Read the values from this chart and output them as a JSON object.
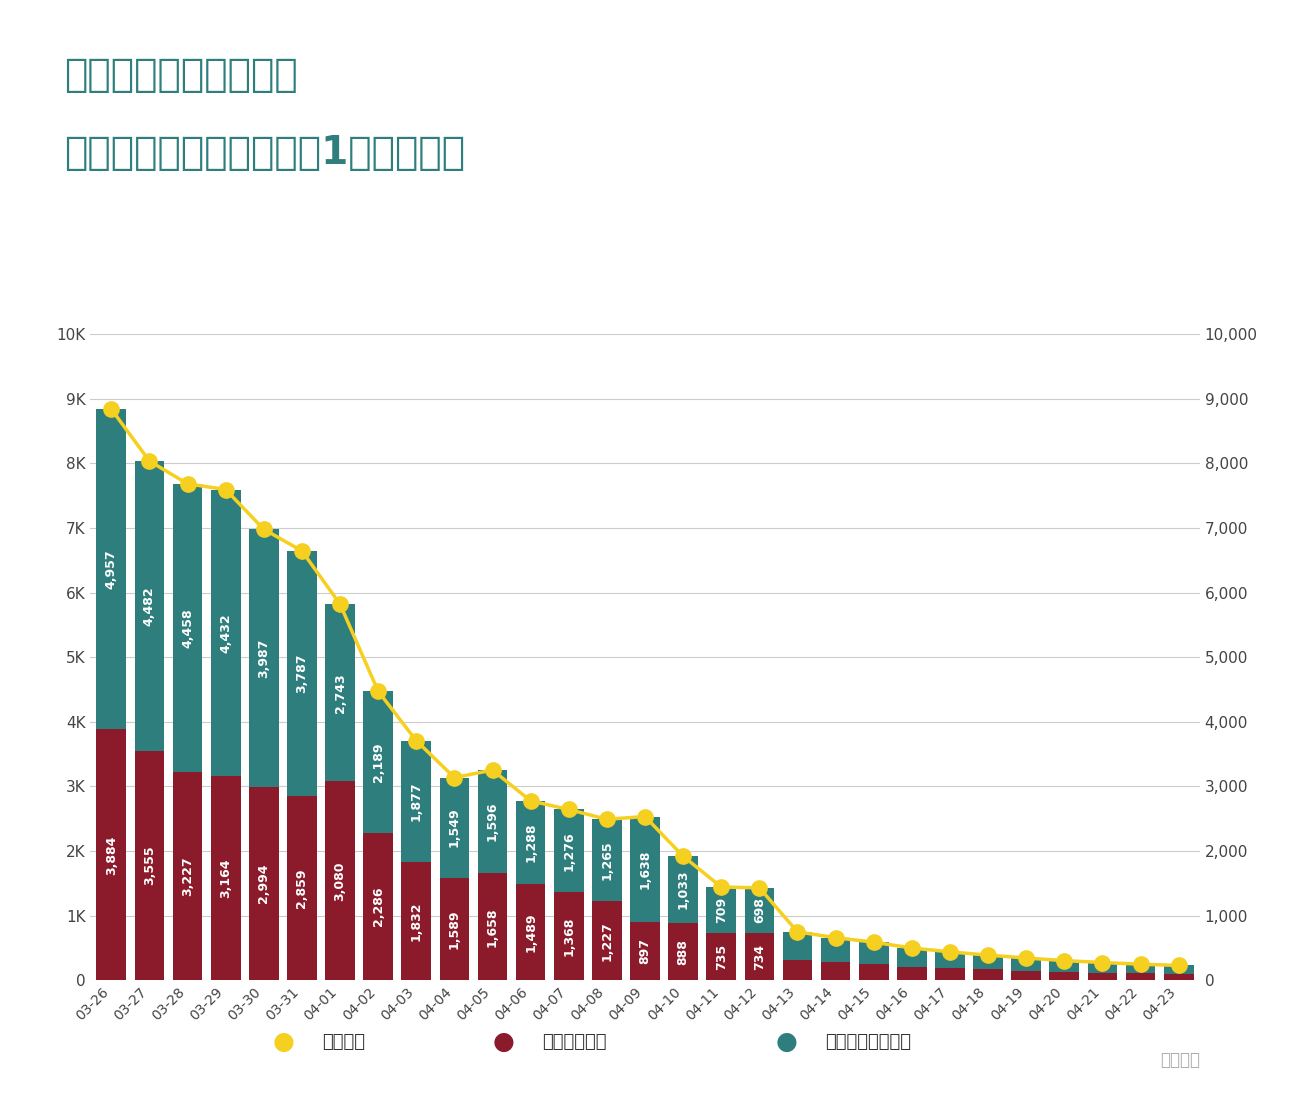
{
  "title_line1": "本港新型冠狀病毒肺炎",
  "title_line2": "第五波疫情趨勢回落單日1萬宗後個案",
  "categories": [
    "03-26",
    "03-27",
    "03-28",
    "03-29",
    "03-30",
    "03-31",
    "04-01",
    "04-02",
    "04-03",
    "04-04",
    "04-05",
    "04-06",
    "04-07",
    "04-08",
    "04-09",
    "04-10",
    "04-11",
    "04-12",
    "04-13",
    "04-14",
    "04-15",
    "04-16",
    "04-17",
    "04-18",
    "04-19",
    "04-20",
    "04-21",
    "04-22",
    "04-23"
  ],
  "pcr": [
    3884,
    3555,
    3227,
    3164,
    2994,
    2859,
    3080,
    2286,
    1832,
    1589,
    1658,
    1489,
    1368,
    1227,
    897,
    888,
    735,
    734,
    320,
    280,
    250,
    210,
    190,
    170,
    150,
    135,
    120,
    110,
    100
  ],
  "rat": [
    4957,
    4482,
    4458,
    4432,
    3987,
    3787,
    2743,
    2189,
    1877,
    1549,
    1596,
    1288,
    1276,
    1265,
    1638,
    1033,
    709,
    698,
    430,
    380,
    340,
    290,
    250,
    220,
    195,
    170,
    155,
    140,
    130
  ],
  "total": [
    8841,
    8037,
    7685,
    7596,
    6981,
    6646,
    5823,
    4475,
    3709,
    3138,
    3254,
    2777,
    2644,
    2492,
    2535,
    1921,
    1444,
    1432,
    750,
    660,
    590,
    500,
    440,
    390,
    345,
    305,
    275,
    250,
    230
  ],
  "pcr_labels": [
    "3,884",
    "3,555",
    "3,227",
    "3,164",
    "2,994",
    "2,859",
    "3,080",
    "2,286",
    "1,832",
    "1,589",
    "1,658",
    "1,489",
    "1,368",
    "1,227",
    "897",
    "888",
    "735",
    "734",
    "",
    "",
    "",
    "",
    "",
    "",
    "",
    "",
    "",
    "",
    ""
  ],
  "rat_labels": [
    "4,957",
    "4,482",
    "4,458",
    "4,432",
    "3,987",
    "3,787",
    "2,743",
    "2,189",
    "1,877",
    "1,549",
    "1,596",
    "1,288",
    "1,276",
    "1,265",
    "1,638",
    "1,033",
    "709",
    "698",
    "",
    "",
    "",
    "",
    "",
    "",
    "",
    "",
    "",
    "",
    ""
  ],
  "pcr_color": "#8B1A2A",
  "rat_color": "#2E7E7E",
  "line_color": "#F5D020",
  "line_edge_color": "#E0B800",
  "background_color": "#FFFFFF",
  "ylabel_left_ticks": [
    "0",
    "1K",
    "2K",
    "3K",
    "4K",
    "5K",
    "6K",
    "7K",
    "8K",
    "9K",
    "10K"
  ],
  "ylabel_right_ticks": [
    "0",
    "1,000",
    "2,000",
    "3,000",
    "4,000",
    "5,000",
    "6,000",
    "7,000",
    "8,000",
    "9,000",
    "10,000"
  ],
  "ytick_values": [
    0,
    1000,
    2000,
    3000,
    4000,
    5000,
    6000,
    7000,
    8000,
    9000,
    10000
  ],
  "legend_daily": "單日新增",
  "legend_pcr": "核酸檢測陽性",
  "legend_rat": "快速抗原測試陽性",
  "watermark": "知乎用戶",
  "title_color": "#2E7E7E",
  "tick_color": "#444444",
  "grid_color": "#CCCCCC",
  "title_fontsize": 28,
  "bar_label_fontsize": 9,
  "axis_fontsize": 11,
  "legend_fontsize": 13
}
